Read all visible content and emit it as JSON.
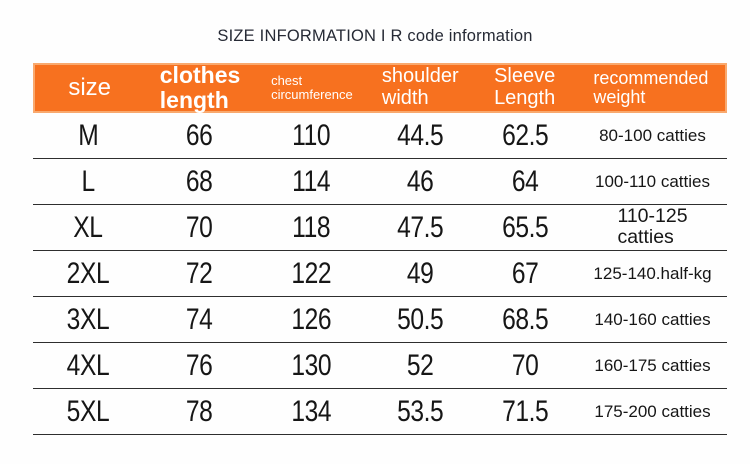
{
  "page": {
    "title": "SIZE INFORMATION I R code information"
  },
  "colors": {
    "header_bg": "#f7711f",
    "header_border": "#f9a96e",
    "divider": "#2e2e2e",
    "body_text": "#161616",
    "header_text": "#ffffff",
    "title_text": "#262a35"
  },
  "table": {
    "columns": [
      {
        "id": "size",
        "label": "size"
      },
      {
        "id": "clothes_length",
        "label": "clothes\nlength"
      },
      {
        "id": "chest_circumference",
        "label": "chest\ncircumference"
      },
      {
        "id": "shoulder_width",
        "label": "shoulder\nwidth"
      },
      {
        "id": "sleeve_length",
        "label": "Sleeve\nLength"
      },
      {
        "id": "recommended_weight",
        "label": "recommended\nweight"
      }
    ],
    "rows": [
      {
        "size": "M",
        "clothes_length": "66",
        "chest_circumference": "110",
        "shoulder_width": "44.5",
        "sleeve_length": "62.5",
        "recommended_weight": "80-100 catties"
      },
      {
        "size": "L",
        "clothes_length": "68",
        "chest_circumference": "114",
        "shoulder_width": "46",
        "sleeve_length": "64",
        "recommended_weight": "100-110 catties"
      },
      {
        "size": "XL",
        "clothes_length": "70",
        "chest_circumference": "118",
        "shoulder_width": "47.5",
        "sleeve_length": "65.5",
        "recommended_weight": "110-125\ncatties"
      },
      {
        "size": "2XL",
        "clothes_length": "72",
        "chest_circumference": "122",
        "shoulder_width": "49",
        "sleeve_length": "67",
        "recommended_weight": "125-140.half-kg"
      },
      {
        "size": "3XL",
        "clothes_length": "74",
        "chest_circumference": "126",
        "shoulder_width": "50.5",
        "sleeve_length": "68.5",
        "recommended_weight": "140-160 catties"
      },
      {
        "size": "4XL",
        "clothes_length": "76",
        "chest_circumference": "130",
        "shoulder_width": "52",
        "sleeve_length": "70",
        "recommended_weight": "160-175 catties"
      },
      {
        "size": "5XL",
        "clothes_length": "78",
        "chest_circumference": "134",
        "shoulder_width": "53.5",
        "sleeve_length": "71.5",
        "recommended_weight": "175-200 catties"
      }
    ]
  }
}
